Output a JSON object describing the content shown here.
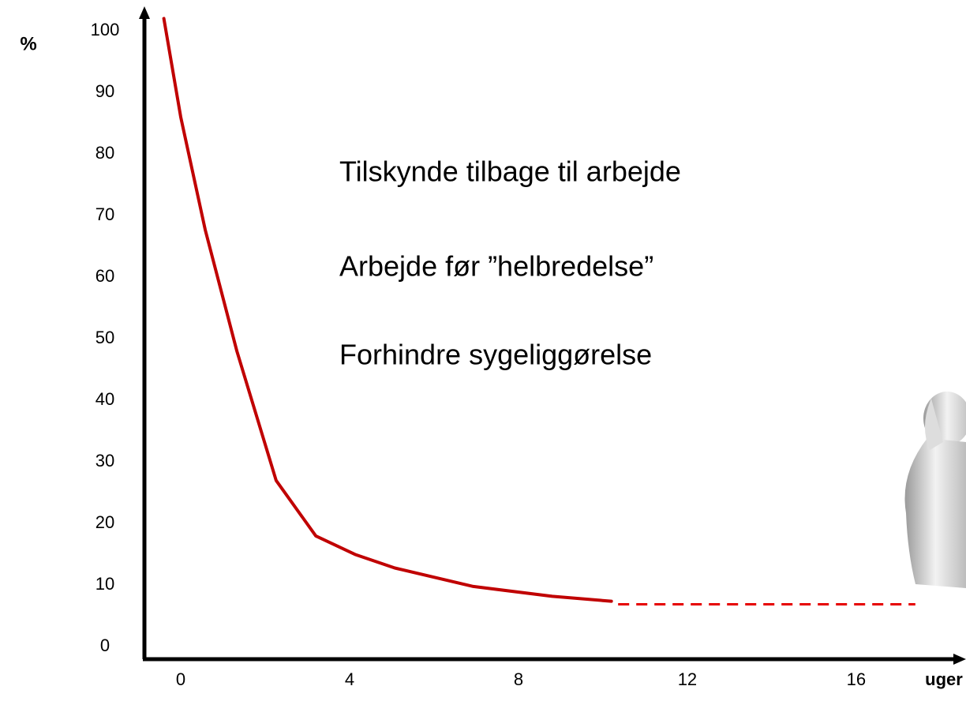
{
  "chart_data": {
    "type": "line",
    "y_label": "%",
    "x_label": "uger",
    "annotations": [
      "Tilskynde tilbage til arbejde",
      "Arbejde før ”helbredelse”",
      "Forhindre sygeliggørelse"
    ],
    "xlim": [
      -0.86,
      18.6
    ],
    "ylim": [
      -2,
      105
    ],
    "xticks": [
      0,
      4,
      8,
      12,
      16
    ],
    "yticks": [
      0,
      10,
      20,
      30,
      40,
      50,
      60,
      70,
      80,
      90,
      100
    ],
    "grid": false,
    "series": [
      {
        "color": "#c00000",
        "dashed": false,
        "x": [
          -0.4,
          0,
          0.58,
          1.33,
          2.26,
          3.2,
          4.13,
          5.07,
          6.93,
          8.8,
          10.2
        ],
        "values": [
          102,
          86,
          67.7,
          48,
          27,
          18,
          15,
          12.8,
          9.8,
          8.2,
          7.4
        ]
      },
      {
        "color": "#e60000",
        "dashed": true,
        "x": [
          10.36,
          17.4
        ],
        "values": [
          6.9,
          6.9
        ]
      }
    ]
  }
}
